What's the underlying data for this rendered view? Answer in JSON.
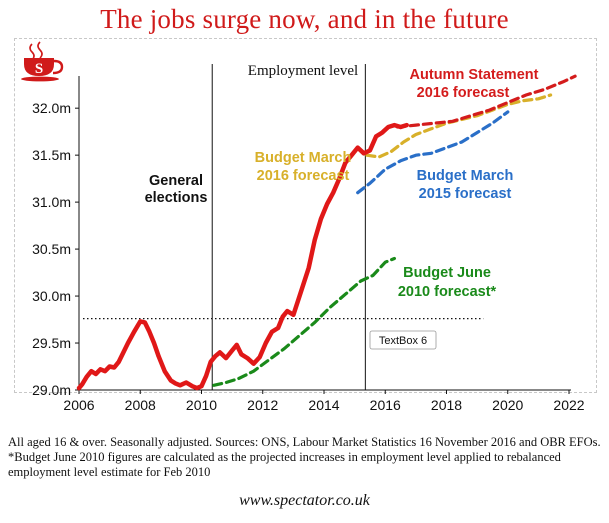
{
  "chart_data": {
    "type": "line",
    "title": "The jobs surge now, and in the future",
    "subtitle": "Employment level",
    "xlabel": "",
    "ylabel": "",
    "xlim": [
      2006,
      2022
    ],
    "ylim": [
      29.0,
      32.3
    ],
    "x_ticks": [
      2006,
      2008,
      2010,
      2012,
      2014,
      2016,
      2018,
      2020,
      2022
    ],
    "y_ticks": [
      29.0,
      29.5,
      30.0,
      30.5,
      31.0,
      31.5,
      32.0
    ],
    "y_tick_labels": [
      "29.0m",
      "29.5m",
      "30.0m",
      "30.5m",
      "31.0m",
      "31.5m",
      "32.0m"
    ],
    "grid": false,
    "vertical_markers": [
      {
        "name": "election-2010",
        "x": 2010.35
      },
      {
        "name": "election-2015",
        "x": 2015.35
      }
    ],
    "reference_line": {
      "name": "dotted-reference",
      "y": 29.76,
      "x_range": [
        2006,
        2019.2
      ]
    },
    "series": [
      {
        "name": "Employment level",
        "color": "#e01818",
        "style": "solid",
        "x": [
          2006.0,
          2006.1,
          2006.25,
          2006.4,
          2006.55,
          2006.7,
          2006.85,
          2007.0,
          2007.15,
          2007.3,
          2007.45,
          2007.6,
          2007.8,
          2008.0,
          2008.15,
          2008.3,
          2008.45,
          2008.6,
          2008.8,
          2009.0,
          2009.15,
          2009.3,
          2009.5,
          2009.7,
          2009.85,
          2010.0,
          2010.15,
          2010.3,
          2010.45,
          2010.6,
          2010.8,
          2011.0,
          2011.15,
          2011.3,
          2011.5,
          2011.7,
          2011.9,
          2012.1,
          2012.3,
          2012.5,
          2012.65,
          2012.8,
          2013.0,
          2013.15,
          2013.3,
          2013.5,
          2013.7,
          2013.9,
          2014.1,
          2014.3,
          2014.5,
          2014.7,
          2014.9,
          2015.1,
          2015.3,
          2015.5,
          2015.7,
          2015.9,
          2016.1,
          2016.3,
          2016.5,
          2016.7
        ],
        "values": [
          29.02,
          29.06,
          29.14,
          29.2,
          29.17,
          29.22,
          29.2,
          29.25,
          29.24,
          29.3,
          29.4,
          29.5,
          29.62,
          29.73,
          29.72,
          29.62,
          29.5,
          29.36,
          29.2,
          29.1,
          29.07,
          29.05,
          29.08,
          29.04,
          29.02,
          29.04,
          29.15,
          29.3,
          29.36,
          29.4,
          29.34,
          29.42,
          29.48,
          29.38,
          29.34,
          29.28,
          29.35,
          29.5,
          29.62,
          29.66,
          29.78,
          29.84,
          29.8,
          29.95,
          30.1,
          30.3,
          30.6,
          30.82,
          30.98,
          31.1,
          31.25,
          31.42,
          31.5,
          31.58,
          31.52,
          31.55,
          31.7,
          31.74,
          31.8,
          31.82,
          31.8,
          31.82
        ]
      },
      {
        "name": "Autumn Statement 2016 forecast",
        "color": "#d41c1c",
        "style": "dashed",
        "x": [
          2016.4,
          2017,
          2017.6,
          2018.2,
          2018.8,
          2019.4,
          2020.0,
          2020.6,
          2021.2,
          2021.8,
          2022.2
        ],
        "values": [
          31.8,
          31.82,
          31.84,
          31.86,
          31.92,
          31.98,
          32.06,
          32.14,
          32.2,
          32.28,
          32.34
        ]
      },
      {
        "name": "Budget March 2016 forecast",
        "color": "#d8b02a",
        "style": "dashed",
        "x": [
          2015.4,
          2015.8,
          2016.2,
          2016.6,
          2017.0,
          2017.5,
          2018.0,
          2018.5,
          2019.0,
          2019.5,
          2020.0,
          2020.5,
          2021.0,
          2021.4
        ],
        "values": [
          31.5,
          31.48,
          31.54,
          31.64,
          31.72,
          31.78,
          31.84,
          31.88,
          31.92,
          31.98,
          32.04,
          32.08,
          32.1,
          32.14
        ]
      },
      {
        "name": "Budget March 2015 forecast",
        "color": "#2a6fc8",
        "style": "dashed",
        "x": [
          2015.1,
          2015.5,
          2016.0,
          2016.5,
          2017.0,
          2017.5,
          2018.0,
          2018.5,
          2019.0,
          2019.5,
          2020.0
        ],
        "values": [
          31.1,
          31.2,
          31.35,
          31.44,
          31.5,
          31.52,
          31.58,
          31.64,
          31.74,
          31.84,
          31.96
        ]
      },
      {
        "name": "Budget June 2010 forecast*",
        "color": "#1a8a1a",
        "style": "dashed",
        "x": [
          2010.4,
          2010.8,
          2011.2,
          2011.7,
          2012.2,
          2012.7,
          2013.2,
          2013.7,
          2014.2,
          2014.7,
          2015.2,
          2015.6,
          2016.0,
          2016.3
        ],
        "values": [
          29.05,
          29.08,
          29.12,
          29.2,
          29.32,
          29.44,
          29.58,
          29.72,
          29.88,
          30.02,
          30.16,
          30.22,
          30.36,
          30.4
        ]
      }
    ],
    "annotations": {
      "general_elections": [
        "General",
        "elections"
      ],
      "autumn_2016": [
        "Autumn Statement",
        "2016 forecast"
      ],
      "budget_march_2016": [
        "Budget March",
        "2016 forecast"
      ],
      "budget_march_2015": [
        "Budget March",
        "2015 forecast"
      ],
      "budget_june_2010": [
        "Budget June",
        "2010 forecast*"
      ],
      "textbox": "TextBox 6"
    }
  },
  "logo": {
    "letter": "S",
    "icon": "spectator-cup-icon",
    "color": "#d01a1a"
  },
  "footnote": "All aged 16 & over. Seasonally adjusted. Sources: ONS, Labour Market Statistics 16 November 2016 and OBR EFOs. *Budget June 2010 figures are calculated as the projected increases in employment level applied to rebalanced employment level estimate for Feb 2010",
  "website": "www.spectator.co.uk"
}
